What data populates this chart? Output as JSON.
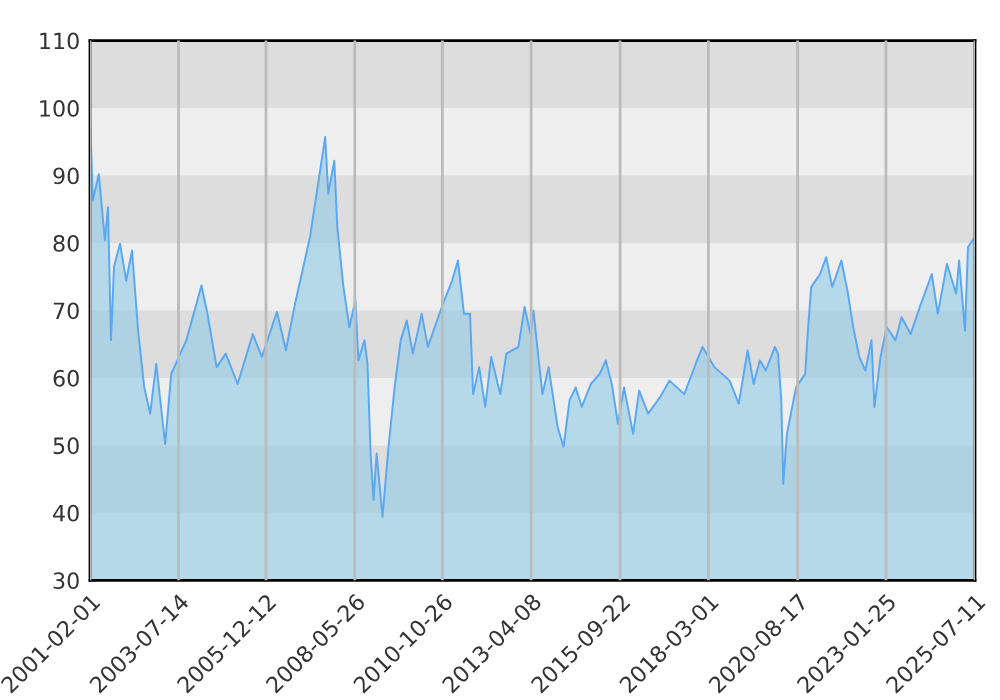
{
  "chart_data": {
    "type": "area",
    "x": [
      "2001-02-01",
      "2001-03",
      "2001-05",
      "2001-07",
      "2001-08",
      "2001-09",
      "2001-10",
      "2001-12",
      "2002-02",
      "2002-04",
      "2002-06",
      "2002-08",
      "2002-10",
      "2002-12",
      "2003-03",
      "2003-05",
      "2003-10",
      "2004-03",
      "2004-05",
      "2004-08",
      "2004-11",
      "2005-03",
      "2005-08",
      "2005-11",
      "2006-04",
      "2006-07",
      "2006-10",
      "2007-03",
      "2007-05",
      "2007-08",
      "2007-09",
      "2007-11",
      "2007-12",
      "2008-02",
      "2008-04",
      "2008-06",
      "2008-07",
      "2008-09",
      "2008-10",
      "2008-11",
      "2008-12",
      "2009-01",
      "2009-03",
      "2009-05",
      "2009-07",
      "2009-09",
      "2009-11",
      "2010-01",
      "2010-04",
      "2010-06",
      "2010-11",
      "2011-02",
      "2011-04",
      "2011-06",
      "2011-08",
      "2011-09",
      "2011-11",
      "2012-01",
      "2012-03",
      "2012-06",
      "2012-08",
      "2012-12",
      "2013-02",
      "2013-04",
      "2013-05",
      "2013-07",
      "2013-08",
      "2013-10",
      "2014-01",
      "2014-03",
      "2014-05",
      "2014-07",
      "2014-09",
      "2014-12",
      "2015-03",
      "2015-05",
      "2015-07",
      "2015-09",
      "2015-11",
      "2016-02",
      "2016-04",
      "2016-07",
      "2016-11",
      "2017-02",
      "2017-07",
      "2017-11",
      "2018-01",
      "2018-05",
      "2018-10",
      "2019-01",
      "2019-04",
      "2019-06",
      "2019-08",
      "2019-10",
      "2020-01",
      "2020-02",
      "2020-03-05",
      "2020-03-25",
      "2020-05",
      "2020-08",
      "2020-11",
      "2020-12",
      "2021-01",
      "2021-04",
      "2021-06",
      "2021-08",
      "2021-11",
      "2022-01",
      "2022-03",
      "2022-05",
      "2022-07",
      "2022-09",
      "2022-10",
      "2022-12",
      "2023-02",
      "2023-05",
      "2023-07",
      "2023-10",
      "2024-01",
      "2024-05",
      "2024-07",
      "2024-10",
      "2025-01",
      "2025-02",
      "2025-04",
      "2025-05",
      "2025-07-11"
    ],
    "series": [
      {
        "color": "#5aa7f2",
        "values": [
          99.1,
          86.3,
          90.2,
          80.4,
          85.3,
          65.6,
          76.5,
          79.9,
          74.4,
          78.9,
          67,
          58.7,
          54.7,
          62.1,
          50.2,
          60.6,
          65.6,
          73.7,
          69.5,
          61.6,
          63.6,
          59.1,
          66.5,
          63.1,
          69.8,
          64.1,
          71,
          80.9,
          86.8,
          95.7,
          87.3,
          92.2,
          82.4,
          73.5,
          67.5,
          71.5,
          62.6,
          65.6,
          62,
          48.8,
          41.9,
          48.8,
          39.4,
          49.8,
          58.6,
          65.6,
          68.5,
          63.6,
          69.5,
          64.6,
          71,
          74.4,
          77.4,
          69.5,
          69.5,
          57.6,
          61.6,
          55.7,
          63.1,
          57.6,
          63.6,
          64.6,
          70.5,
          66.5,
          70,
          61.6,
          57.6,
          61.6,
          52.7,
          49.8,
          56.7,
          58.6,
          55.7,
          59.1,
          60.6,
          62.6,
          59.1,
          53.2,
          58.6,
          51.7,
          58.1,
          54.7,
          57.2,
          59.6,
          57.6,
          62.4,
          64.6,
          61.6,
          59.6,
          56.2,
          64.1,
          59.1,
          62.6,
          61.1,
          64.6,
          63.6,
          56.7,
          44.3,
          51.7,
          58.6,
          60.6,
          67.5,
          73.5,
          75.4,
          77.9,
          73.5,
          77.4,
          73,
          67.5,
          63.1,
          61.1,
          65.6,
          55.7,
          63.1,
          67.5,
          65.6,
          69,
          66.5,
          70.5,
          75.4,
          69.5,
          76.9,
          72.5,
          77.4,
          67,
          79.4,
          80.9
        ]
      }
    ],
    "xlim": [
      "2001-02-01",
      "2025-07-11"
    ],
    "xticks": [
      "2001-02-01",
      "2003-07-14",
      "2005-12-12",
      "2008-05-26",
      "2010-10-26",
      "2013-04-08",
      "2015-09-22",
      "2018-03-01",
      "2020-08-17",
      "2023-01-25",
      "2025-07-11"
    ],
    "ylim": [
      30,
      110
    ],
    "yticks": [
      30,
      40,
      50,
      60,
      70,
      80,
      90,
      100,
      110
    ],
    "bands": [
      {
        "axis": "y",
        "from": 40,
        "to": 50,
        "color": "#dddddd"
      },
      {
        "axis": "y",
        "from": 60,
        "to": 70,
        "color": "#dddddd"
      },
      {
        "axis": "y",
        "from": 80,
        "to": 90,
        "color": "#dddddd"
      },
      {
        "axis": "y",
        "from": 100,
        "to": 110,
        "color": "#dddddd"
      }
    ],
    "grid": "x",
    "marker": "none",
    "line_style": "solid"
  }
}
